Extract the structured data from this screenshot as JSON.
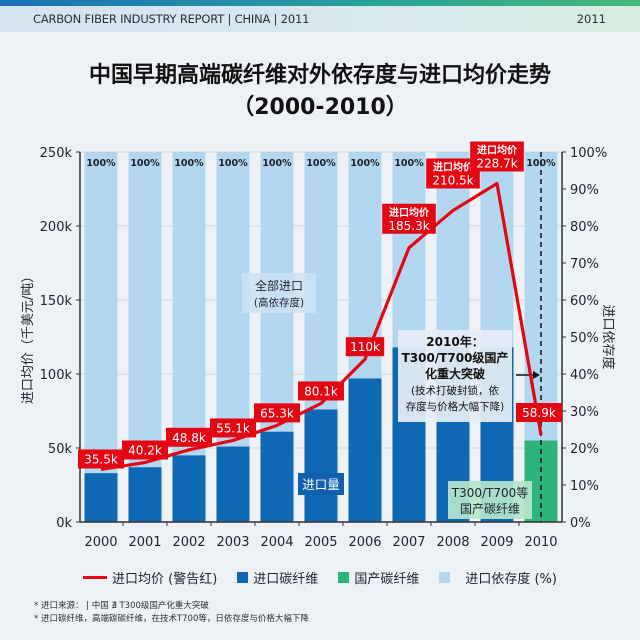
{
  "header": {
    "report_label": "CARBON FIBER INDUSTRY REPORT | CHINA | 2011",
    "year": "2011"
  },
  "title": {
    "line1": "中国早期高端碳纤维对外依存度与进口均价走势",
    "line2": "（2000-2010）"
  },
  "colors": {
    "price_line": "#e30613",
    "imported_fiber": "#0f68b4",
    "domestic_fiber": "#2eb37a",
    "dependency": "#b3d7f1",
    "label_bg": "#e30613"
  },
  "chart_data": {
    "type": "bar",
    "title": "中国早期高端碳纤维对外依存度与进口均价走势（2000-2010）",
    "categories": [
      "2000",
      "2001",
      "2002",
      "2003",
      "2004",
      "2005",
      "2006",
      "2007",
      "2008",
      "2009",
      "2010"
    ],
    "ylabel_left": "进口均价（千美元/吨）",
    "ylabel_right": "进口依存度",
    "ylim_left": [
      0,
      250
    ],
    "ylim_right": [
      0,
      100
    ],
    "yticks_left": [
      "0k",
      "50k",
      "100k",
      "150k",
      "200k",
      "250k"
    ],
    "yticks_right": [
      "0%",
      "10%",
      "20%",
      "30%",
      "40%",
      "50%",
      "60%",
      "70%",
      "80%",
      "90%",
      "100%"
    ],
    "grid": true,
    "series": [
      {
        "name": "进口依存度 (%)",
        "type": "bar",
        "axis": "right",
        "values": [
          100,
          100,
          100,
          100,
          100,
          100,
          100,
          100,
          100,
          100,
          100
        ],
        "labels": [
          "100%",
          "100%",
          "100%",
          "100%",
          "100%",
          "100%",
          "100%",
          "100%",
          "100%",
          "100%",
          "100%"
        ]
      },
      {
        "name": "进口碳纤维",
        "type": "bar",
        "axis": "left",
        "values": [
          33,
          37,
          45,
          51,
          61,
          76,
          97,
          118,
          null,
          null,
          null
        ]
      },
      {
        "name": "国产碳纤维",
        "type": "bar",
        "axis": "right",
        "values": [
          null,
          null,
          null,
          null,
          null,
          null,
          null,
          null,
          null,
          null,
          22
        ]
      },
      {
        "name": "进口均价 (警告红)",
        "type": "line",
        "axis": "left",
        "values": [
          35.5,
          40.2,
          48.8,
          55.1,
          65.3,
          80.1,
          110,
          185.3,
          210.5,
          228.7,
          58.9
        ],
        "labels": [
          "35.5k",
          "40.2k",
          "48.8k",
          "55.1k",
          "65.3k",
          "80.1k",
          "110k",
          "185.3k",
          "210.5k",
          "228.7k",
          "58.9k"
        ],
        "label_prefix_years": [
          "2007",
          "2008",
          "2009"
        ],
        "label_prefix": "进口均价"
      }
    ],
    "annotations": {
      "all_import": {
        "line1": "全部进口",
        "line2": "(高依存度)"
      },
      "import_volume": "进口量",
      "breakthrough": {
        "line1": "2010年：",
        "line2": "T300/T700级国产",
        "line3": "化重大突破",
        "line4": "(技术打破封锁，依",
        "line5": "存度与价格大幅下降)"
      },
      "domestic": {
        "line1": "T300/T700等",
        "line2": "国产碳纤维"
      }
    },
    "legend_position": "bottom"
  },
  "legend": {
    "items": [
      {
        "label": "进口均价 (警告红)"
      },
      {
        "label": "进口碳纤维"
      },
      {
        "label": "国产碳纤维"
      },
      {
        "label": "进口依存度 (%)"
      }
    ]
  },
  "notes": {
    "line1": "* 进口来源：  | 中国 ∄ T300级国产化重大突破",
    "line2": "* 进口碳纤维，高端碳碳纤维，在技术T700等，日依存度与价格大幅下降"
  }
}
